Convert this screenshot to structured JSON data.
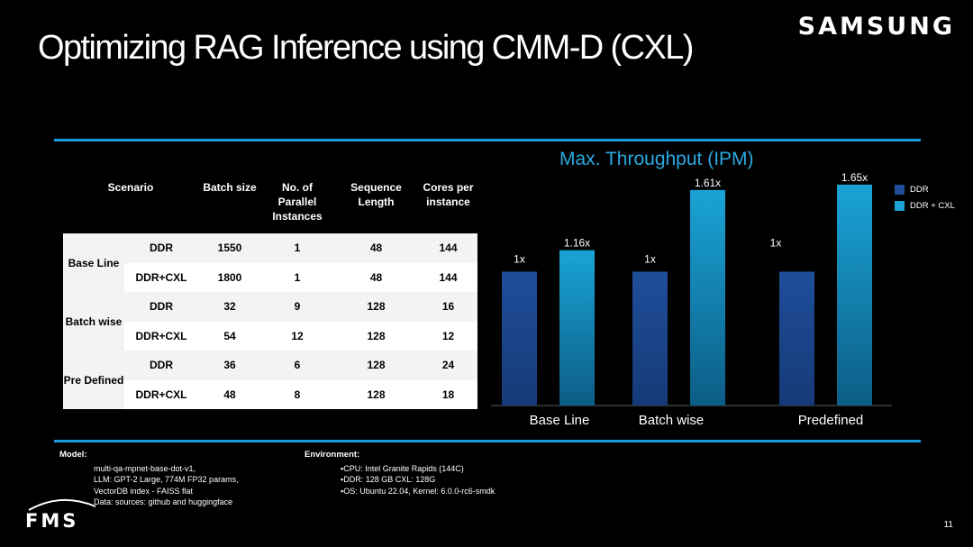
{
  "slide": {
    "title": "Optimizing RAG Inference using CMM-D (CXL)",
    "brand": "SAMSUNG",
    "page_number": "11",
    "footer_logo": "FMS"
  },
  "table": {
    "headers": [
      "Scenario",
      "Batch size",
      "No. of Parallel Instances",
      "Sequence Length",
      "Cores per instance"
    ],
    "groups": [
      {
        "scenario": "Base Line",
        "rows": [
          {
            "memory": "DDR",
            "batch": "1550",
            "instances": "1",
            "seq": "48",
            "cores": "144"
          },
          {
            "memory": "DDR+CXL",
            "batch": "1800",
            "instances": "1",
            "seq": "48",
            "cores": "144"
          }
        ]
      },
      {
        "scenario": "Batch wise",
        "rows": [
          {
            "memory": "DDR",
            "batch": "32",
            "instances": "9",
            "seq": "128",
            "cores": "16"
          },
          {
            "memory": "DDR+CXL",
            "batch": "54",
            "instances": "12",
            "seq": "128",
            "cores": "12"
          }
        ]
      },
      {
        "scenario": "Pre Defined",
        "rows": [
          {
            "memory": "DDR",
            "batch": "36",
            "instances": "6",
            "seq": "128",
            "cores": "24"
          },
          {
            "memory": "DDR+CXL",
            "batch": "48",
            "instances": "8",
            "seq": "128",
            "cores": "18"
          }
        ]
      }
    ]
  },
  "chart_data": {
    "type": "bar",
    "title": "Max. Throughput (IPM)",
    "categories": [
      "Base Line",
      "Batch wise",
      "Predefined"
    ],
    "series": [
      {
        "name": "DDR",
        "values": [
          1.0,
          1.0,
          1.0
        ],
        "labels": [
          "1x",
          "1x",
          "1x"
        ],
        "color": "#1f4e9a"
      },
      {
        "name": "DDR + CXL",
        "values": [
          1.16,
          1.61,
          1.65
        ],
        "labels": [
          "1.16x",
          "1.61x",
          "1.65x"
        ],
        "color": "#1aa3d6"
      }
    ],
    "ylim": [
      0,
      1.75
    ],
    "legend": "right",
    "grid": false
  },
  "notes": {
    "model_head": "Model:",
    "model_lines": [
      "multi-qa-mpnet-base-dot-v1,",
      "LLM: GPT-2 Large, 774M FP32 params,",
      "VectorDB index -  FAISS flat",
      "Data: sources: github and huggingface"
    ],
    "env_head": "Environment:",
    "env_lines": [
      "▪CPU: Intel Granite Rapids (144C)",
      "▪DDR: 128 GB CXL: 128G",
      "▪OS: Ubuntu 22.04, Kernel: 6.0.0-rc6-smdk"
    ]
  }
}
